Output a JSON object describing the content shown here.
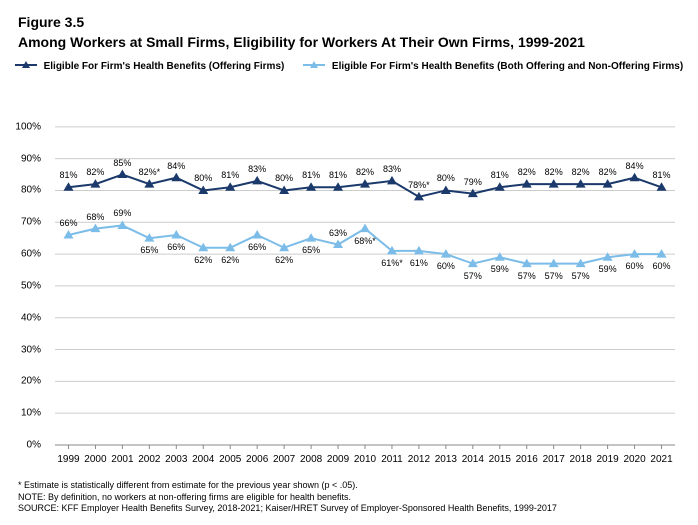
{
  "figure_number": "Figure 3.5",
  "figure_title": "Among Workers at Small Firms, Eligibility for Workers At Their Own Firms, 1999-2021",
  "legend": {
    "items": [
      {
        "label": "Eligible For Firm's Health Benefits (Offering Firms)",
        "color": "#1b3a6b"
      },
      {
        "label": "Eligible For Firm's Health Benefits (Both Offering and Non-Offering Firms)",
        "color": "#7bbde8"
      }
    ]
  },
  "chart": {
    "type": "line",
    "background_color": "#ffffff",
    "grid_color": "#cccccc",
    "ylim": [
      0,
      110
    ],
    "ytick_step": 10,
    "y_top_label_max": 100,
    "x_labels": [
      "1999",
      "2000",
      "2001",
      "2002",
      "2003",
      "2004",
      "2005",
      "2006",
      "2007",
      "2008",
      "2009",
      "2010",
      "2011",
      "2012",
      "2013",
      "2014",
      "2015",
      "2016",
      "2017",
      "2018",
      "2019",
      "2020",
      "2021"
    ],
    "marker_style": "triangle",
    "line_width": 2,
    "marker_size": 5,
    "series": [
      {
        "name": "Eligible For Firm's Health Benefits (Offering Firms)",
        "color": "#1b3a6b",
        "label_position": "above",
        "data": [
          {
            "y": 81,
            "label": "81%"
          },
          {
            "y": 82,
            "label": "82%"
          },
          {
            "y": 85,
            "label": "85%"
          },
          {
            "y": 82,
            "label": "82%*"
          },
          {
            "y": 84,
            "label": "84%"
          },
          {
            "y": 80,
            "label": "80%"
          },
          {
            "y": 81,
            "label": "81%"
          },
          {
            "y": 83,
            "label": "83%"
          },
          {
            "y": 80,
            "label": "80%"
          },
          {
            "y": 81,
            "label": "81%"
          },
          {
            "y": 81,
            "label": "81%"
          },
          {
            "y": 82,
            "label": "82%"
          },
          {
            "y": 83,
            "label": "83%"
          },
          {
            "y": 78,
            "label": "78%*"
          },
          {
            "y": 80,
            "label": "80%"
          },
          {
            "y": 79,
            "label": "79%"
          },
          {
            "y": 81,
            "label": "81%"
          },
          {
            "y": 82,
            "label": "82%"
          },
          {
            "y": 82,
            "label": "82%"
          },
          {
            "y": 82,
            "label": "82%"
          },
          {
            "y": 82,
            "label": "82%"
          },
          {
            "y": 84,
            "label": "84%"
          },
          {
            "y": 81,
            "label": "81%"
          }
        ]
      },
      {
        "name": "Eligible For Firm's Health Benefits (Both Offering and Non-Offering Firms)",
        "color": "#7bbde8",
        "label_position": "below",
        "data": [
          {
            "y": 66,
            "label": "66%"
          },
          {
            "y": 68,
            "label": "68%"
          },
          {
            "y": 69,
            "label": "69%"
          },
          {
            "y": 65,
            "label": "65%"
          },
          {
            "y": 66,
            "label": "66%"
          },
          {
            "y": 62,
            "label": "62%"
          },
          {
            "y": 62,
            "label": "62%"
          },
          {
            "y": 66,
            "label": "66%"
          },
          {
            "y": 62,
            "label": "62%"
          },
          {
            "y": 65,
            "label": "65%"
          },
          {
            "y": 63,
            "label": "63%"
          },
          {
            "y": 68,
            "label": "68%*"
          },
          {
            "y": 61,
            "label": "61%*"
          },
          {
            "y": 61,
            "label": "61%"
          },
          {
            "y": 60,
            "label": "60%"
          },
          {
            "y": 57,
            "label": "57%"
          },
          {
            "y": 59,
            "label": "59%"
          },
          {
            "y": 57,
            "label": "57%"
          },
          {
            "y": 57,
            "label": "57%"
          },
          {
            "y": 57,
            "label": "57%"
          },
          {
            "y": 59,
            "label": "59%"
          },
          {
            "y": 60,
            "label": "60%"
          },
          {
            "y": 60,
            "label": "60%"
          }
        ]
      }
    ]
  },
  "footnotes": [
    "* Estimate is statistically different from estimate for the previous year shown (p < .05).",
    "NOTE: By definition, no workers at non-offering firms are eligible for health benefits.",
    "SOURCE: KFF Employer Health Benefits Survey, 2018-2021; Kaiser/HRET Survey of Employer-Sponsored Health Benefits, 1999-2017"
  ]
}
